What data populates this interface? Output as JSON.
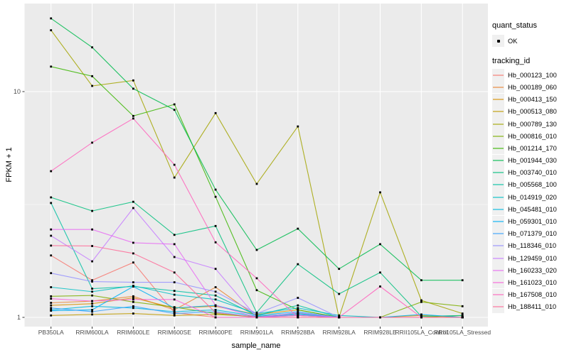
{
  "axes": {
    "x_title": "sample_name",
    "y_title": "FPKM + 1",
    "y_ticks": [
      {
        "label": "1",
        "value": 1
      },
      {
        "label": "10",
        "value": 10
      }
    ],
    "y_minor_breaks": [
      3.1623
    ]
  },
  "legend": {
    "quant_status_title": "quant_status",
    "quant_status_ok": "OK",
    "tracking_id_title": "tracking_id"
  },
  "figure": {
    "panel_bg": "#EBEBEB",
    "grid_color": "#FFFFFF",
    "tick_color": "#333333",
    "tick_label_color": "#4D4D4D",
    "point_color": "#000000"
  },
  "chart_data": {
    "type": "line",
    "title": "",
    "xlabel": "sample_name",
    "ylabel": "FPKM + 1",
    "yscale": "log10",
    "ylim": [
      0.95,
      23
    ],
    "grid": true,
    "legend_position": "right",
    "categories": [
      "PB350LA",
      "RRIM600LA",
      "RRIM600LE",
      "RRIM600SE",
      "RRIM600PE",
      "RRIM901LA",
      "RRIM928BA",
      "RRIM928LA",
      "RRIM928LE",
      "RRII105LA_Control",
      "RRII105LA_Stressed"
    ],
    "series": [
      {
        "name": "Hb_000123_100",
        "color": "#F8766D",
        "values": [
          1.88,
          1.46,
          1.75,
          1.05,
          1.0,
          1.0,
          1.0,
          1.0,
          1.0,
          1.0,
          1.0
        ]
      },
      {
        "name": "Hb_000189_060",
        "color": "#EA8331",
        "values": [
          1.16,
          1.18,
          1.24,
          1.08,
          1.36,
          1.01,
          1.02,
          1.0,
          1.0,
          1.0,
          1.0
        ]
      },
      {
        "name": "Hb_000413_150",
        "color": "#D89000",
        "values": [
          1.13,
          1.15,
          1.22,
          1.1,
          1.12,
          1.03,
          1.08,
          1.0,
          1.0,
          1.02,
          1.0
        ]
      },
      {
        "name": "Hb_000513_080",
        "color": "#C09B00",
        "values": [
          1.02,
          1.03,
          1.04,
          1.02,
          1.03,
          1.01,
          1.04,
          1.0,
          1.0,
          1.0,
          1.02
        ]
      },
      {
        "name": "Hb_000789_130",
        "color": "#A3A500",
        "values": [
          18.7,
          10.6,
          11.2,
          4.16,
          8.03,
          3.9,
          7.01,
          1.0,
          3.58,
          1.19,
          1.04
        ]
      },
      {
        "name": "Hb_000816_010",
        "color": "#7CAE00",
        "values": [
          1.24,
          1.25,
          1.17,
          1.11,
          1.04,
          1.0,
          1.02,
          1.0,
          1.0,
          1.17,
          1.12
        ]
      },
      {
        "name": "Hb_001214_170",
        "color": "#39B600",
        "values": [
          12.9,
          11.7,
          7.8,
          8.78,
          3.42,
          1.32,
          1.08,
          1.0,
          1.0,
          1.0,
          1.0
        ]
      },
      {
        "name": "Hb_001944_030",
        "color": "#00BB4E",
        "values": [
          21.1,
          15.7,
          10.3,
          8.3,
          3.68,
          1.99,
          2.47,
          1.64,
          2.11,
          1.46,
          1.46
        ]
      },
      {
        "name": "Hb_003740_010",
        "color": "#00BF7D",
        "values": [
          3.4,
          2.96,
          3.25,
          2.32,
          2.54,
          1.05,
          1.72,
          1.27,
          1.58,
          1.01,
          1.02
        ]
      },
      {
        "name": "Hb_005568_100",
        "color": "#00C1A3",
        "values": [
          3.21,
          1.34,
          1.37,
          1.31,
          1.25,
          1.02,
          1.13,
          1.0,
          1.0,
          1.0,
          1.0
        ]
      },
      {
        "name": "Hb_014919_020",
        "color": "#00BFC4",
        "values": [
          1.36,
          1.3,
          1.38,
          1.26,
          1.2,
          1.04,
          1.1,
          1.02,
          1.0,
          1.0,
          1.0
        ]
      },
      {
        "name": "Hb_045481_010",
        "color": "#00BAE0",
        "values": [
          1.08,
          1.12,
          1.1,
          1.06,
          1.08,
          1.01,
          1.04,
          1.0,
          1.0,
          1.0,
          1.0
        ]
      },
      {
        "name": "Hb_059301_010",
        "color": "#00B0F6",
        "values": [
          1.07,
          1.08,
          1.37,
          1.1,
          1.13,
          1.02,
          1.06,
          1.0,
          1.0,
          1.03,
          1.0
        ]
      },
      {
        "name": "Hb_071379_010",
        "color": "#35A2FF",
        "values": [
          1.1,
          1.06,
          1.12,
          1.04,
          1.06,
          1.0,
          1.03,
          1.0,
          1.0,
          1.0,
          1.0
        ]
      },
      {
        "name": "Hb_118346_010",
        "color": "#9590FF",
        "values": [
          1.57,
          1.44,
          1.43,
          1.43,
          1.3,
          1.04,
          1.22,
          1.0,
          1.0,
          1.0,
          1.0
        ]
      },
      {
        "name": "Hb_129459_010",
        "color": "#C77CFF",
        "values": [
          2.3,
          1.77,
          3.05,
          1.85,
          1.64,
          1.0,
          1.05,
          1.0,
          1.0,
          1.0,
          1.0
        ]
      },
      {
        "name": "Hb_160233_020",
        "color": "#E76BF3",
        "values": [
          2.45,
          2.45,
          2.14,
          2.11,
          1.13,
          1.0,
          1.02,
          1.0,
          1.0,
          1.0,
          1.0
        ]
      },
      {
        "name": "Hb_161023_010",
        "color": "#FA62DB",
        "values": [
          1.21,
          1.18,
          1.2,
          1.2,
          1.0,
          1.0,
          1.0,
          1.0,
          1.0,
          1.0,
          1.0
        ]
      },
      {
        "name": "Hb_167508_010",
        "color": "#FF62BC",
        "values": [
          4.44,
          5.94,
          7.6,
          4.74,
          2.15,
          1.49,
          1.0,
          1.0,
          1.37,
          1.0,
          1.0
        ]
      },
      {
        "name": "Hb_188411_010",
        "color": "#FF6A98",
        "values": [
          2.08,
          2.07,
          1.92,
          1.58,
          1.05,
          1.0,
          1.0,
          1.0,
          1.0,
          1.0,
          1.0
        ]
      }
    ]
  }
}
